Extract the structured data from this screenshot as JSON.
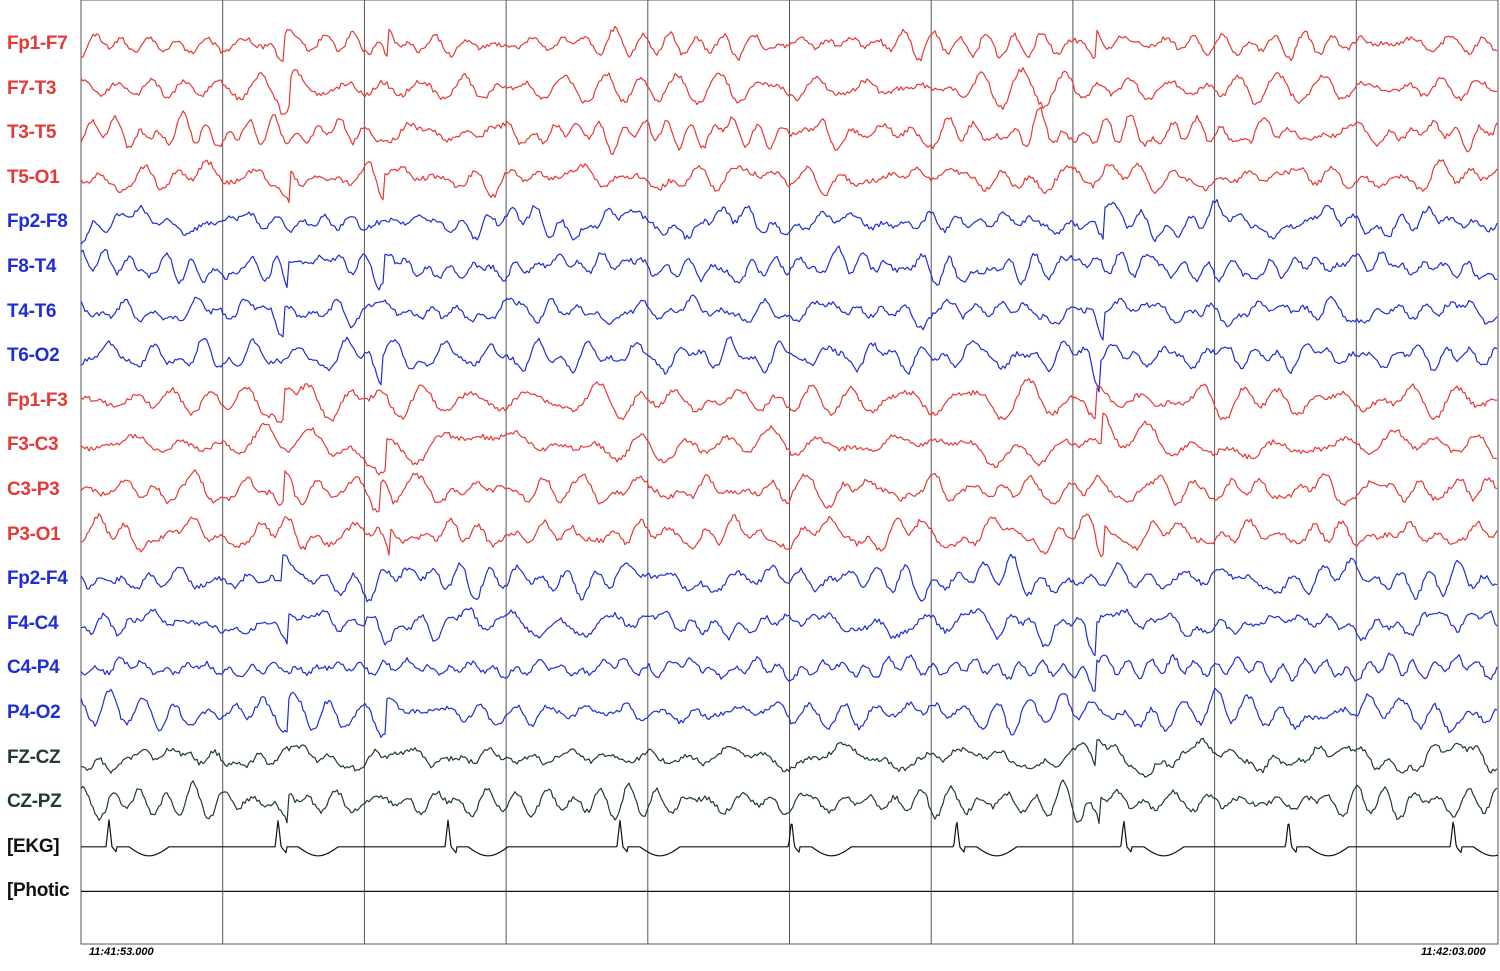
{
  "channels": [
    {
      "label": "Fp1-F7",
      "color": "#e53935",
      "type": "eeg",
      "seed": 1
    },
    {
      "label": "F7-T3",
      "color": "#e53935",
      "type": "eeg",
      "seed": 2
    },
    {
      "label": "T3-T5",
      "color": "#e53935",
      "type": "eeg",
      "seed": 3
    },
    {
      "label": "T5-O1",
      "color": "#e53935",
      "type": "eeg",
      "seed": 4
    },
    {
      "label": "Fp2-F8",
      "color": "#1e2ed6",
      "type": "eeg",
      "seed": 5
    },
    {
      "label": "F8-T4",
      "color": "#1e2ed6",
      "type": "eeg",
      "seed": 6
    },
    {
      "label": "T4-T6",
      "color": "#1e2ed6",
      "type": "eeg",
      "seed": 7
    },
    {
      "label": "T6-O2",
      "color": "#1e2ed6",
      "type": "eeg",
      "seed": 8
    },
    {
      "label": "Fp1-F3",
      "color": "#e53935",
      "type": "eeg",
      "seed": 9
    },
    {
      "label": "F3-C3",
      "color": "#e53935",
      "type": "eeg",
      "seed": 10
    },
    {
      "label": "C3-P3",
      "color": "#e53935",
      "type": "eeg",
      "seed": 11
    },
    {
      "label": "P3-O1",
      "color": "#e53935",
      "type": "eeg",
      "seed": 12
    },
    {
      "label": "Fp2-F4",
      "color": "#1e2ed6",
      "type": "eeg",
      "seed": 13
    },
    {
      "label": "F4-C4",
      "color": "#1e2ed6",
      "type": "eeg",
      "seed": 14
    },
    {
      "label": "C4-P4",
      "color": "#1e2ed6",
      "type": "eeg",
      "seed": 15
    },
    {
      "label": "P4-O2",
      "color": "#1e2ed6",
      "type": "eeg",
      "seed": 16
    },
    {
      "label": "FZ-CZ",
      "color": "#1f3d2a",
      "type": "eeg",
      "seed": 17
    },
    {
      "label": "CZ-PZ",
      "color": "#1f3d2a",
      "type": "eeg",
      "seed": 18
    },
    {
      "label": "[EKG]",
      "color": "#111111",
      "type": "ekg",
      "seed": 19
    },
    {
      "label": "[Photic",
      "color": "#111111",
      "type": "flat",
      "seed": 20
    }
  ],
  "time": {
    "start": "11:41:53.000",
    "end": "11:42:03.000",
    "seconds": 10
  },
  "colors": {
    "background": "#ffffff",
    "grid": "#555555",
    "label_text": "#000000"
  }
}
